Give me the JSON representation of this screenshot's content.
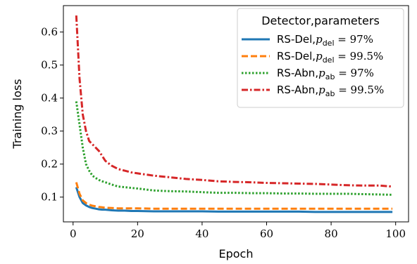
{
  "chart_data": {
    "type": "line",
    "xlabel": "Epoch",
    "ylabel": "Training loss",
    "xlim": [
      -3,
      104
    ],
    "ylim": [
      0.025,
      0.68
    ],
    "xticks": [
      0,
      20,
      40,
      60,
      80,
      100
    ],
    "yticks": [
      0.1,
      0.2,
      0.3,
      0.4,
      0.5,
      0.6
    ],
    "ytick_labels": [
      "0.1",
      "0.2",
      "0.3",
      "0.4",
      "0.5",
      "0.6"
    ],
    "grid": false,
    "legend": {
      "title": "Detector,parameters",
      "placement": "top-right"
    },
    "x": [
      1,
      2,
      3,
      4,
      5,
      6,
      7,
      8,
      9,
      10,
      12,
      14,
      16,
      18,
      20,
      25,
      30,
      35,
      40,
      45,
      50,
      55,
      60,
      65,
      70,
      75,
      80,
      85,
      90,
      95,
      99
    ],
    "series": [
      {
        "name": "RS-Del, p_del = 97%",
        "color": "#1f77b4",
        "style": "solid",
        "values": [
          0.13,
          0.1,
          0.082,
          0.075,
          0.07,
          0.067,
          0.065,
          0.063,
          0.062,
          0.062,
          0.06,
          0.059,
          0.059,
          0.058,
          0.058,
          0.057,
          0.057,
          0.057,
          0.057,
          0.056,
          0.056,
          0.056,
          0.056,
          0.056,
          0.056,
          0.055,
          0.055,
          0.055,
          0.055,
          0.055,
          0.055
        ]
      },
      {
        "name": "RS-Del, p_del = 99.5%",
        "color": "#ff7f0e",
        "style": "dashed",
        "values": [
          0.145,
          0.11,
          0.09,
          0.082,
          0.077,
          0.074,
          0.072,
          0.07,
          0.069,
          0.068,
          0.067,
          0.066,
          0.066,
          0.066,
          0.066,
          0.065,
          0.065,
          0.065,
          0.065,
          0.065,
          0.065,
          0.065,
          0.065,
          0.065,
          0.065,
          0.065,
          0.065,
          0.065,
          0.065,
          0.065,
          0.065
        ]
      },
      {
        "name": "RS-Abn, p_ab = 97%",
        "color": "#2ca02c",
        "style": "dotted",
        "values": [
          0.39,
          0.32,
          0.25,
          0.2,
          0.18,
          0.165,
          0.158,
          0.152,
          0.148,
          0.145,
          0.138,
          0.132,
          0.13,
          0.128,
          0.126,
          0.12,
          0.118,
          0.117,
          0.115,
          0.113,
          0.113,
          0.112,
          0.112,
          0.111,
          0.111,
          0.11,
          0.11,
          0.11,
          0.109,
          0.108,
          0.107
        ]
      },
      {
        "name": "RS-Abn, p_ab = 99.5%",
        "color": "#d62728",
        "style": "dashdot",
        "values": [
          0.65,
          0.46,
          0.35,
          0.3,
          0.27,
          0.26,
          0.25,
          0.24,
          0.225,
          0.21,
          0.195,
          0.185,
          0.18,
          0.175,
          0.172,
          0.165,
          0.16,
          0.155,
          0.152,
          0.148,
          0.146,
          0.145,
          0.143,
          0.142,
          0.141,
          0.14,
          0.138,
          0.136,
          0.135,
          0.135,
          0.132
        ]
      }
    ]
  }
}
